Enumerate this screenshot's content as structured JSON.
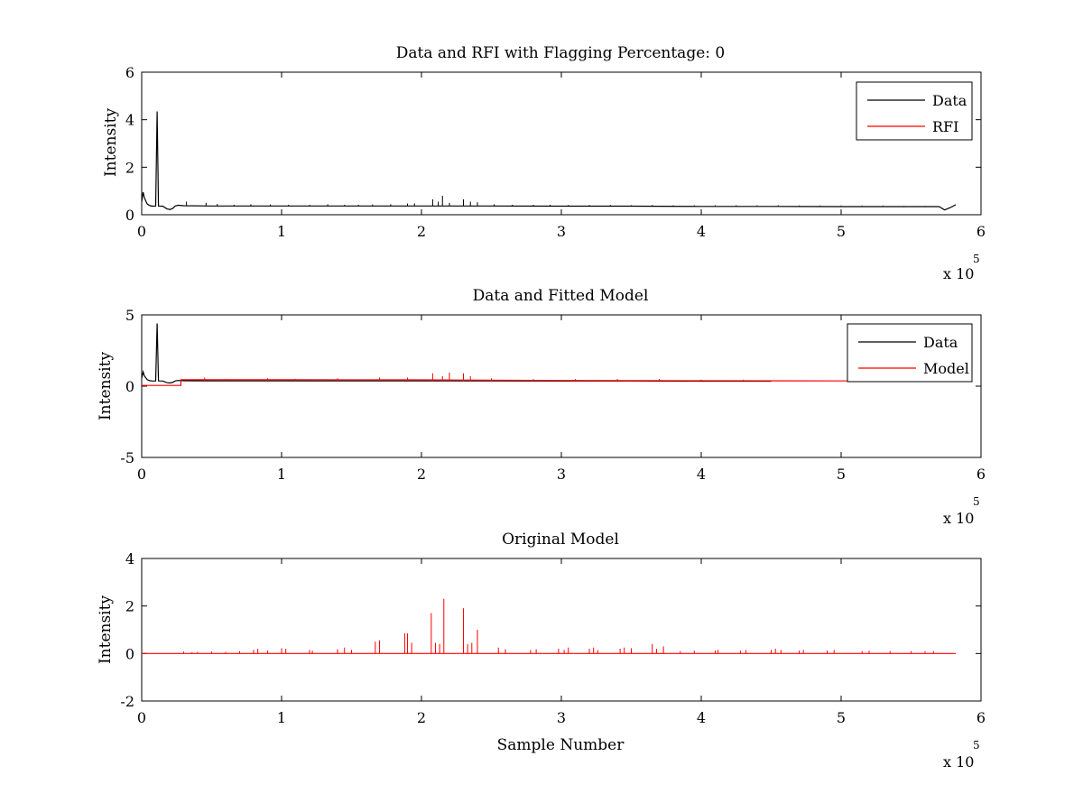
{
  "figure": {
    "background": "#ffffff",
    "colors": {
      "data": "#000000",
      "rfi": "#ff0000",
      "model": "#ff0000"
    }
  },
  "chart_data": [
    {
      "id": "rfi",
      "type": "line",
      "title": "Data and RFI with Flagging Percentage: 0",
      "xlabel": "",
      "ylabel": "Intensity",
      "xlim": [
        0,
        6
      ],
      "ylim": [
        0,
        6
      ],
      "xticks": [
        "0",
        "1",
        "2",
        "3",
        "4",
        "5",
        "6"
      ],
      "yticks": [
        "0",
        "2",
        "4",
        "6"
      ],
      "x_multiplier": {
        "base": "x 10",
        "exponent": "5"
      },
      "legend": {
        "position": "top-right",
        "entries": [
          "Data",
          "RFI"
        ]
      },
      "series": [
        {
          "name": "Data",
          "color": "#000000",
          "x": [
            0,
            0.01,
            0.02,
            0.04,
            0.06,
            0.08,
            0.1,
            0.11,
            0.12,
            0.15,
            0.18,
            0.2,
            0.22,
            0.24,
            0.26,
            0.3,
            0.5,
            1.0,
            1.5,
            2.0,
            2.5,
            3.0,
            3.5,
            4.0,
            4.5,
            5.0,
            5.5,
            5.7,
            5.74,
            5.78,
            5.82
          ],
          "y": [
            0.55,
            0.95,
            0.7,
            0.45,
            0.38,
            0.36,
            0.37,
            4.35,
            0.37,
            0.36,
            0.25,
            0.22,
            0.26,
            0.37,
            0.4,
            0.38,
            0.37,
            0.37,
            0.37,
            0.37,
            0.37,
            0.36,
            0.36,
            0.35,
            0.35,
            0.34,
            0.34,
            0.34,
            0.2,
            0.3,
            0.42
          ]
        },
        {
          "name": "RFI",
          "color": "#ff0000",
          "x": [],
          "y": []
        }
      ],
      "spikes": {
        "x": [
          0.32,
          0.46,
          0.54,
          0.66,
          0.78,
          0.92,
          1.05,
          1.2,
          1.33,
          1.45,
          1.55,
          1.65,
          1.78,
          1.9,
          1.95,
          2.08,
          2.12,
          2.15,
          2.2,
          2.3,
          2.35,
          2.4,
          2.52,
          2.65,
          2.8,
          2.92,
          3.05,
          3.2,
          3.35,
          3.5,
          3.65,
          3.8,
          3.95,
          4.1,
          4.25,
          4.4,
          4.55,
          4.7,
          4.85,
          5.0,
          5.15,
          5.3,
          5.45,
          5.6
        ],
        "y": [
          0.55,
          0.5,
          0.45,
          0.42,
          0.44,
          0.43,
          0.42,
          0.42,
          0.44,
          0.42,
          0.42,
          0.43,
          0.44,
          0.47,
          0.48,
          0.65,
          0.55,
          0.8,
          0.5,
          0.65,
          0.55,
          0.52,
          0.44,
          0.42,
          0.42,
          0.42,
          0.41,
          0.41,
          0.41,
          0.4,
          0.41,
          0.4,
          0.4,
          0.4,
          0.4,
          0.4,
          0.4,
          0.39,
          0.39,
          0.39,
          0.39,
          0.39,
          0.38,
          0.38
        ]
      }
    },
    {
      "id": "fit",
      "type": "line",
      "title": "Data and Fitted Model",
      "xlabel": "",
      "ylabel": "Intensity",
      "xlim": [
        0,
        6
      ],
      "ylim": [
        -5,
        5
      ],
      "xticks": [
        "0",
        "1",
        "2",
        "3",
        "4",
        "5",
        "6"
      ],
      "yticks": [
        "-5",
        "0",
        "5"
      ],
      "x_multiplier": {
        "base": "x 10",
        "exponent": "5"
      },
      "legend": {
        "position": "top-right",
        "entries": [
          "Data",
          "Model"
        ]
      },
      "series": [
        {
          "name": "Data",
          "color": "#000000",
          "x": [
            0,
            0.01,
            0.02,
            0.04,
            0.06,
            0.08,
            0.1,
            0.11,
            0.12,
            0.15,
            0.18,
            0.2,
            0.22,
            0.24,
            0.26,
            0.3,
            0.5,
            1.0,
            1.5,
            2.0,
            2.5,
            3.0,
            3.5,
            4.0,
            4.5
          ],
          "y": [
            0.55,
            1.0,
            0.7,
            0.45,
            0.38,
            0.36,
            0.37,
            4.4,
            0.37,
            0.36,
            0.25,
            0.22,
            0.26,
            0.37,
            0.4,
            0.38,
            0.37,
            0.37,
            0.37,
            0.37,
            0.37,
            0.36,
            0.36,
            0.35,
            0.35
          ]
        },
        {
          "name": "Model",
          "color": "#ff0000",
          "x": [
            0,
            0.28,
            0.28,
            1.0,
            2.0,
            3.0,
            4.0,
            5.0,
            5.82
          ],
          "y": [
            0.05,
            0.05,
            0.45,
            0.45,
            0.44,
            0.4,
            0.38,
            0.37,
            0.36
          ]
        }
      ],
      "spikes": {
        "x": [
          0.45,
          0.6,
          0.9,
          1.1,
          1.4,
          1.7,
          1.9,
          2.08,
          2.15,
          2.2,
          2.3,
          2.35,
          2.5,
          2.8,
          3.1,
          3.4,
          3.7,
          4.0,
          4.3
        ],
        "y": [
          0.6,
          0.5,
          0.55,
          0.5,
          0.55,
          0.6,
          0.6,
          0.9,
          0.7,
          0.95,
          0.9,
          0.7,
          0.55,
          0.5,
          0.5,
          0.5,
          0.5,
          0.45,
          0.45
        ]
      }
    },
    {
      "id": "orig",
      "type": "line",
      "title": "Original Model",
      "xlabel": "Sample Number",
      "ylabel": "Intensity",
      "xlim": [
        0,
        6
      ],
      "ylim": [
        -2,
        4
      ],
      "xticks": [
        "0",
        "1",
        "2",
        "3",
        "4",
        "5",
        "6"
      ],
      "yticks": [
        "-2",
        "0",
        "2",
        "4"
      ],
      "x_multiplier": {
        "base": "x 10",
        "exponent": "5"
      },
      "legend": null,
      "series": [
        {
          "name": "",
          "color": "#ff0000",
          "x": [
            0,
            5.82
          ],
          "y": [
            0,
            0
          ]
        }
      ],
      "spikes": {
        "x": [
          0.3,
          0.36,
          0.4,
          0.5,
          0.6,
          0.7,
          0.8,
          0.83,
          0.9,
          1.0,
          1.03,
          1.2,
          1.22,
          1.4,
          1.45,
          1.5,
          1.67,
          1.7,
          1.88,
          1.9,
          1.93,
          2.07,
          2.1,
          2.13,
          2.16,
          2.3,
          2.33,
          2.36,
          2.4,
          2.55,
          2.6,
          2.78,
          2.82,
          2.98,
          3.02,
          3.05,
          3.2,
          3.23,
          3.26,
          3.42,
          3.45,
          3.5,
          3.65,
          3.68,
          3.73,
          3.85,
          3.95,
          4.1,
          4.12,
          4.28,
          4.32,
          4.5,
          4.53,
          4.57,
          4.7,
          4.73,
          4.9,
          4.95,
          5.15,
          5.2,
          5.35,
          5.5,
          5.6,
          5.66
        ],
        "y": [
          0.08,
          0.06,
          0.07,
          0.08,
          0.07,
          0.1,
          0.15,
          0.2,
          0.12,
          0.22,
          0.2,
          0.15,
          0.12,
          0.18,
          0.25,
          0.15,
          0.5,
          0.55,
          0.85,
          0.85,
          0.45,
          1.7,
          0.45,
          0.4,
          2.3,
          1.9,
          0.4,
          0.45,
          1.0,
          0.25,
          0.18,
          0.15,
          0.18,
          0.2,
          0.15,
          0.25,
          0.2,
          0.25,
          0.15,
          0.2,
          0.25,
          0.22,
          0.4,
          0.2,
          0.3,
          0.1,
          0.12,
          0.12,
          0.15,
          0.12,
          0.15,
          0.15,
          0.2,
          0.15,
          0.12,
          0.15,
          0.12,
          0.15,
          0.1,
          0.12,
          0.1,
          0.1,
          0.1,
          0.1
        ]
      }
    }
  ]
}
